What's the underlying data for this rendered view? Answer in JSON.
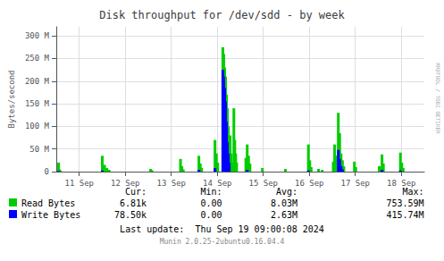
{
  "chart_data": {
    "type": "bar",
    "title": "Disk throughput for /dev/sdd - by week",
    "ylabel": "Bytes/second",
    "xlim": [
      0,
      8
    ],
    "xticks": [
      {
        "value": 0.5,
        "label": "11 Sep"
      },
      {
        "value": 1.5,
        "label": "12 Sep"
      },
      {
        "value": 2.5,
        "label": "13 Sep"
      },
      {
        "value": 3.5,
        "label": "14 Sep"
      },
      {
        "value": 4.5,
        "label": "15 Sep"
      },
      {
        "value": 5.5,
        "label": "16 Sep"
      },
      {
        "value": 6.5,
        "label": "17 Sep"
      },
      {
        "value": 7.5,
        "label": "18 Sep"
      }
    ],
    "ylim": [
      0,
      320000000
    ],
    "yticks": [
      0,
      {
        "value": 50000000,
        "label": "50 M"
      },
      {
        "value": 100000000,
        "label": "100 M"
      },
      {
        "value": 150000000,
        "label": "150 M"
      },
      {
        "value": 200000000,
        "label": "200 M"
      },
      {
        "value": 250000000,
        "label": "250 M"
      },
      {
        "value": 300000000,
        "label": "300 M"
      }
    ],
    "grid": true,
    "legend": "bottom",
    "series": [
      {
        "name": "Read Bytes",
        "color": "#00cc00",
        "x": [
          0.05,
          0.07,
          0.09,
          1.0,
          1.05,
          1.1,
          1.15,
          2.05,
          2.08,
          2.7,
          2.73,
          2.76,
          3.1,
          3.13,
          3.16,
          3.45,
          3.48,
          3.51,
          3.62,
          3.64,
          3.66,
          3.68,
          3.7,
          3.72,
          3.74,
          3.76,
          3.78,
          3.8,
          3.82,
          3.86,
          3.88,
          3.9,
          3.92,
          4.12,
          4.15,
          4.18,
          4.21,
          4.48,
          4.98,
          5.48,
          5.51,
          5.54,
          5.7,
          5.78,
          6.02,
          6.05,
          6.08,
          6.13,
          6.16,
          6.19,
          6.22,
          6.25,
          6.48,
          6.51,
          7.02,
          7.08,
          7.11,
          7.48,
          7.51,
          7.54
        ],
        "values": [
          20000000,
          5000000,
          2000000,
          35000000,
          15000000,
          8000000,
          4000000,
          6000000,
          3000000,
          28000000,
          12000000,
          5000000,
          35000000,
          18000000,
          8000000,
          70000000,
          40000000,
          20000000,
          275000000,
          260000000,
          230000000,
          210000000,
          170000000,
          140000000,
          100000000,
          60000000,
          80000000,
          40000000,
          20000000,
          140000000,
          70000000,
          40000000,
          20000000,
          30000000,
          60000000,
          35000000,
          18000000,
          8000000,
          6000000,
          60000000,
          25000000,
          10000000,
          6000000,
          4000000,
          22000000,
          60000000,
          35000000,
          130000000,
          85000000,
          40000000,
          25000000,
          12000000,
          22000000,
          10000000,
          12000000,
          38000000,
          18000000,
          42000000,
          20000000,
          8000000
        ]
      },
      {
        "name": "Write Bytes",
        "color": "#0000ff",
        "x": [
          0.05,
          1.0,
          3.1,
          3.45,
          3.62,
          3.64,
          3.66,
          3.68,
          3.7,
          3.72,
          3.74,
          3.76,
          4.15,
          5.48,
          6.13,
          6.16,
          6.19,
          6.22,
          7.08,
          7.48
        ],
        "values": [
          1500000,
          2500000,
          4000000,
          8000000,
          225000000,
          210000000,
          185000000,
          155000000,
          110000000,
          65000000,
          40000000,
          20000000,
          4000000,
          2500000,
          48000000,
          28000000,
          12000000,
          5000000,
          4000000,
          2500000
        ]
      }
    ],
    "annotations": [
      [
        "Cur:",
        "Min:",
        "Avg:",
        "Max:"
      ],
      [
        "6.81k",
        "0.00",
        "8.03M",
        "753.59M"
      ],
      [
        "78.50k",
        "0.00",
        "2.63M",
        "415.74M"
      ],
      "Last update:  Thu Sep 19 09:00:08 2024",
      "Munin 2.0.25-2ubuntu0.16.04.4",
      "RRDTOOL / TOBI OETIKER"
    ]
  }
}
